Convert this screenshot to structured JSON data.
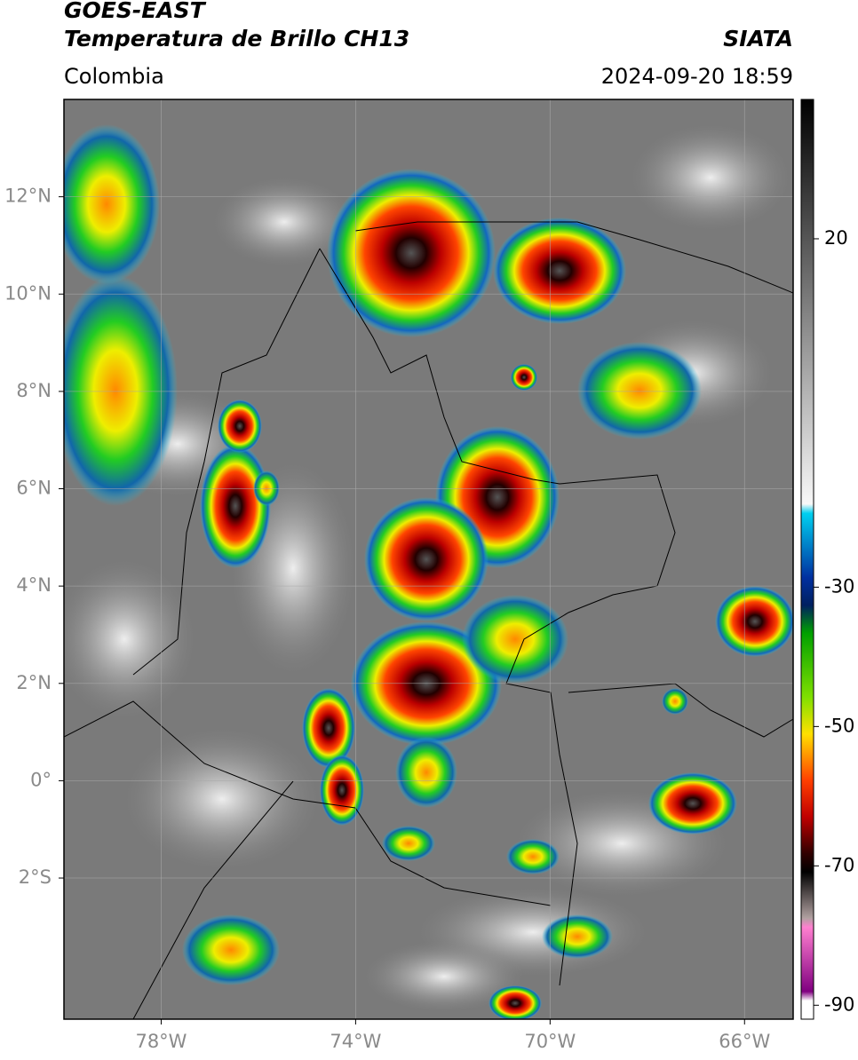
{
  "header": {
    "title": "GOES-EAST",
    "subtitle": "Temperatura de Brillo CH13",
    "source": "SIATA",
    "region": "Colombia",
    "datetime": "2024-09-20 18:59"
  },
  "map": {
    "xlim": [
      -80,
      -65
    ],
    "ylim": [
      -4.9,
      14
    ],
    "xticks": [
      {
        "value": -78,
        "label": "78°W"
      },
      {
        "value": -74,
        "label": "74°W"
      },
      {
        "value": -70,
        "label": "70°W"
      },
      {
        "value": -66,
        "label": "66°W"
      }
    ],
    "yticks": [
      {
        "value": 12,
        "label": "12°N"
      },
      {
        "value": 10,
        "label": "10°N"
      },
      {
        "value": 8,
        "label": "8°N"
      },
      {
        "value": 6,
        "label": "6°N"
      },
      {
        "value": 4,
        "label": "4°N"
      },
      {
        "value": 2,
        "label": "2°N"
      },
      {
        "value": 0,
        "label": "0°"
      },
      {
        "value": -2,
        "label": "2°S"
      }
    ]
  },
  "colorbar": {
    "ylim": [
      -92,
      40
    ],
    "ticks": [
      20,
      -30,
      -50,
      -70,
      -90
    ]
  }
}
